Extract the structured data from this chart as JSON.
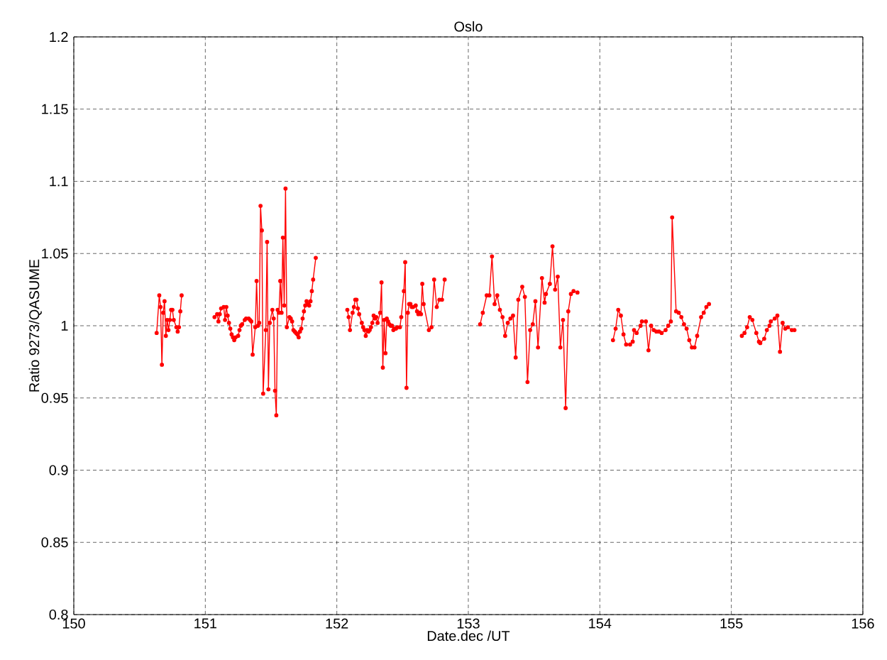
{
  "chart_data": {
    "type": "line",
    "title": "Oslo",
    "xlabel": "Date.dec /UT",
    "ylabel": "Ratio 9273/QASUME",
    "xlim": [
      150,
      156
    ],
    "xticks": [
      150,
      151,
      152,
      153,
      154,
      155,
      156
    ],
    "ylim": [
      0.8,
      1.2
    ],
    "yticks": [
      0.8,
      0.85,
      0.9,
      0.95,
      1,
      1.05,
      1.1,
      1.15,
      1.2
    ],
    "grid": true,
    "marker": "circle",
    "line_style": "solid",
    "series": [
      {
        "color": "#ff0000",
        "x": [
          150.63,
          150.65,
          150.66,
          150.67,
          150.68,
          150.69,
          150.7,
          150.71,
          150.72,
          150.73,
          150.74,
          150.75,
          150.76,
          150.78,
          150.79,
          150.8,
          150.81,
          150.82,
          150.95,
          151.07,
          151.09,
          151.1,
          151.11,
          151.12,
          151.14,
          151.15,
          151.16,
          151.17,
          151.18,
          151.19,
          151.2,
          151.21,
          151.22,
          151.23,
          151.25,
          151.26,
          151.27,
          151.28,
          151.3,
          151.31,
          151.33,
          151.34,
          151.35,
          151.36,
          151.38,
          151.39,
          151.4,
          151.41,
          151.42,
          151.43,
          151.44,
          151.46,
          151.47,
          151.48,
          151.49,
          151.51,
          151.52,
          151.53,
          151.54,
          151.55,
          151.56,
          151.57,
          151.58,
          151.59,
          151.6,
          151.61,
          151.62,
          151.64,
          151.65,
          151.66,
          151.67,
          151.68,
          151.69,
          151.7,
          151.71,
          151.72,
          151.73,
          151.74,
          151.75,
          151.76,
          151.77,
          151.78,
          151.79,
          151.8,
          151.81,
          151.82,
          151.84,
          151.95,
          152.08,
          152.09,
          152.1,
          152.12,
          152.13,
          152.14,
          152.15,
          152.16,
          152.17,
          152.19,
          152.2,
          152.21,
          152.22,
          152.23,
          152.24,
          152.25,
          152.26,
          152.27,
          152.28,
          152.29,
          152.3,
          152.31,
          152.33,
          152.34,
          152.35,
          152.36,
          152.37,
          152.38,
          152.39,
          152.4,
          152.41,
          152.42,
          152.43,
          152.44,
          152.45,
          152.46,
          152.48,
          152.49,
          152.51,
          152.52,
          152.53,
          152.54,
          152.55,
          152.56,
          152.57,
          152.58,
          152.6,
          152.61,
          152.62,
          152.63,
          152.64,
          152.65,
          152.66,
          152.7,
          152.72,
          152.74,
          152.76,
          152.78,
          152.8,
          152.82,
          152.95,
          153.09,
          153.11,
          153.14,
          153.16,
          153.18,
          153.2,
          153.22,
          153.24,
          153.26,
          153.28,
          153.3,
          153.32,
          153.34,
          153.36,
          153.38,
          153.41,
          153.43,
          153.45,
          153.47,
          153.49,
          153.51,
          153.53,
          153.56,
          153.58,
          153.59,
          153.62,
          153.64,
          153.66,
          153.68,
          153.7,
          153.72,
          153.74,
          153.76,
          153.78,
          153.8,
          153.83,
          153.95,
          154.1,
          154.12,
          154.14,
          154.16,
          154.18,
          154.2,
          154.23,
          154.25,
          154.26,
          154.28,
          154.31,
          154.32,
          154.35,
          154.37,
          154.39,
          154.41,
          154.43,
          154.45,
          154.47,
          154.5,
          154.52,
          154.54,
          154.55,
          154.58,
          154.6,
          154.62,
          154.64,
          154.66,
          154.68,
          154.7,
          154.72,
          154.74,
          154.77,
          154.79,
          154.81,
          154.83,
          154.95,
          155.08,
          155.1,
          155.12,
          155.14,
          155.16,
          155.19,
          155.21,
          155.22,
          155.25,
          155.27,
          155.29,
          155.3,
          155.33,
          155.35,
          155.37,
          155.39,
          155.41,
          155.43,
          155.46,
          155.48
        ],
        "values": [
          0.995,
          1.021,
          1.013,
          0.973,
          1.009,
          1.017,
          0.993,
          1.004,
          0.997,
          1.004,
          1.011,
          1.011,
          1.004,
          0.999,
          0.996,
          0.999,
          1.01,
          1.021,
          null,
          1.006,
          1.008,
          1.003,
          1.008,
          1.012,
          1.013,
          1.004,
          1.013,
          1.007,
          1.002,
          0.998,
          0.994,
          0.992,
          0.99,
          0.992,
          0.993,
          0.997,
          1.0,
          1.001,
          1.004,
          1.005,
          1.005,
          1.004,
          1.003,
          0.98,
          0.999,
          1.031,
          1.0,
          1.002,
          1.083,
          1.066,
          0.953,
          0.997,
          1.058,
          0.956,
          1.002,
          1.011,
          1.005,
          0.955,
          0.938,
          1.011,
          1.009,
          1.031,
          1.009,
          1.061,
          1.014,
          1.095,
          0.999,
          1.006,
          1.005,
          1.003,
          0.997,
          0.996,
          0.995,
          0.994,
          0.992,
          0.996,
          0.998,
          1.005,
          1.01,
          1.014,
          1.017,
          1.015,
          1.014,
          1.017,
          1.024,
          1.032,
          1.047,
          null,
          1.011,
          1.006,
          0.997,
          1.009,
          1.013,
          1.018,
          1.018,
          1.012,
          1.008,
          1.002,
          0.999,
          0.997,
          0.993,
          0.997,
          0.996,
          0.997,
          0.999,
          1.002,
          1.007,
          1.005,
          1.006,
          1.002,
          1.009,
          1.03,
          0.971,
          1.004,
          0.981,
          1.005,
          1.003,
          1.001,
          1.0,
          1.0,
          0.997,
          0.998,
          0.998,
          0.999,
          0.999,
          1.006,
          1.024,
          1.044,
          0.957,
          1.009,
          1.015,
          1.015,
          1.013,
          1.013,
          1.014,
          1.01,
          1.008,
          1.009,
          1.008,
          1.029,
          1.015,
          0.997,
          0.999,
          1.032,
          1.013,
          1.018,
          1.018,
          1.032,
          null,
          1.001,
          1.009,
          1.021,
          1.021,
          1.048,
          1.015,
          1.021,
          1.011,
          1.006,
          0.993,
          1.002,
          1.005,
          1.007,
          0.978,
          1.018,
          1.027,
          1.02,
          0.961,
          0.997,
          1.001,
          1.017,
          0.985,
          1.033,
          1.016,
          1.022,
          1.029,
          1.055,
          1.025,
          1.034,
          0.985,
          1.004,
          0.943,
          1.01,
          1.022,
          1.024,
          1.023,
          null,
          0.99,
          0.998,
          1.011,
          1.007,
          0.994,
          0.987,
          0.987,
          0.989,
          0.997,
          0.995,
          1.0,
          1.003,
          1.003,
          0.983,
          1.0,
          0.997,
          0.996,
          0.996,
          0.995,
          0.997,
          1.0,
          1.003,
          1.075,
          1.01,
          1.009,
          1.006,
          1.001,
          0.998,
          0.99,
          0.985,
          0.985,
          0.993,
          1.006,
          1.009,
          1.013,
          1.015,
          null,
          0.993,
          0.995,
          0.999,
          1.006,
          1.004,
          0.995,
          0.989,
          0.988,
          0.991,
          0.997,
          1.0,
          1.003,
          1.005,
          1.007,
          0.982,
          1.002,
          0.998,
          0.999,
          0.997,
          0.997
        ]
      }
    ]
  }
}
